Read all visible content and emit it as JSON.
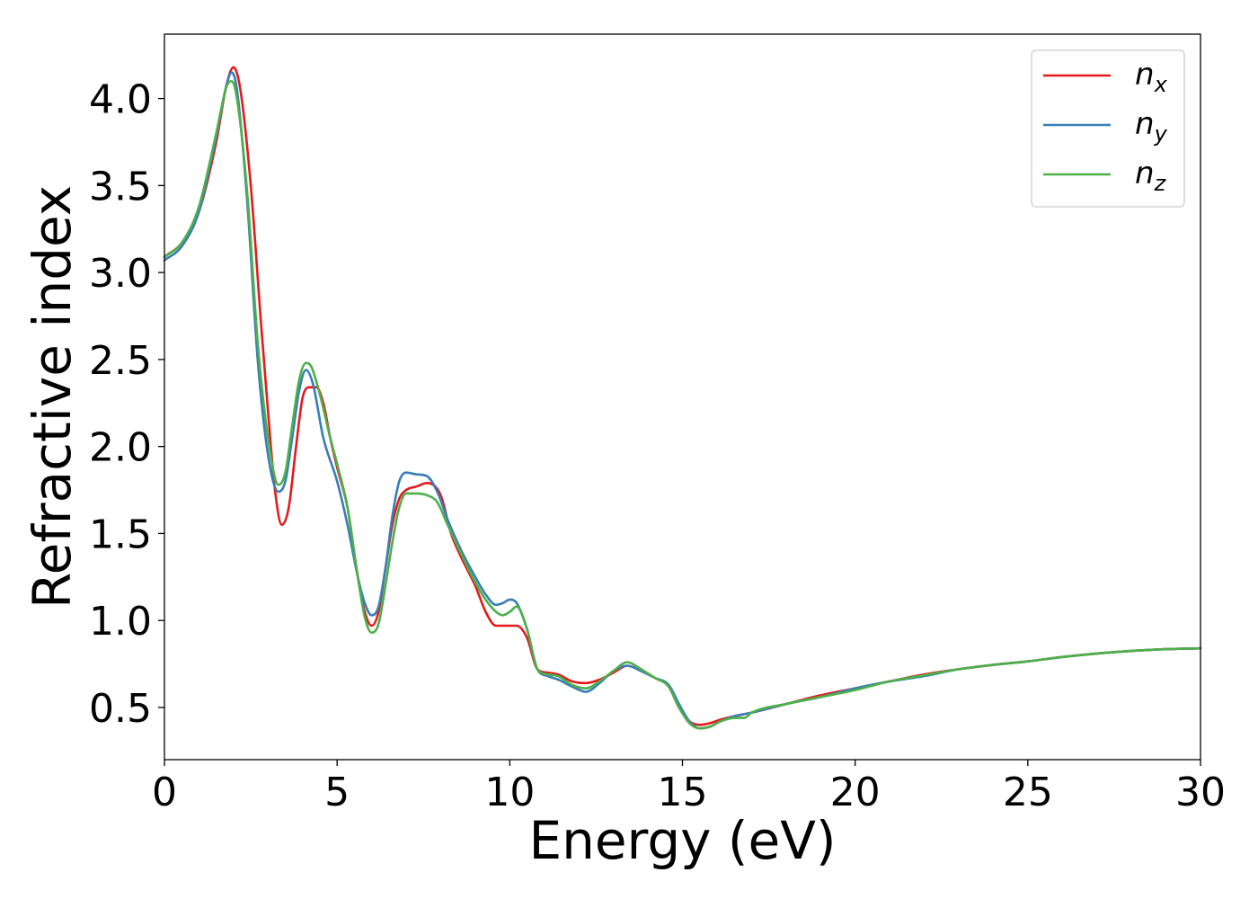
{
  "chart_data": {
    "type": "line",
    "title": "",
    "xlabel": "Energy (eV)",
    "ylabel": "Refractive index",
    "xlim": [
      0,
      30
    ],
    "ylim": [
      0.2,
      4.37
    ],
    "xticks": [
      0,
      5,
      10,
      15,
      20,
      25,
      30
    ],
    "xtick_labels": [
      "0",
      "5",
      "10",
      "15",
      "20",
      "25",
      "30"
    ],
    "yticks": [
      0.5,
      1.0,
      1.5,
      2.0,
      2.5,
      3.0,
      3.5,
      4.0
    ],
    "ytick_labels": [
      "0.5",
      "1.0",
      "1.5",
      "2.0",
      "2.5",
      "3.0",
      "3.5",
      "4.0"
    ],
    "grid": false,
    "legend_position": "top-right",
    "series": [
      {
        "name": "n_x",
        "label_main": "n",
        "label_sub": "x",
        "color": "#e41a1c",
        "x": [
          0,
          0.5,
          1.0,
          1.5,
          1.8,
          2.0,
          2.2,
          2.5,
          2.8,
          3.0,
          3.2,
          3.4,
          3.6,
          3.8,
          4.0,
          4.2,
          4.4,
          4.6,
          4.8,
          5.0,
          5.3,
          5.6,
          5.8,
          6.0,
          6.2,
          6.4,
          6.6,
          6.8,
          7.0,
          7.3,
          7.6,
          8.0,
          8.3,
          8.6,
          9.0,
          9.3,
          9.6,
          9.9,
          10.2,
          10.5,
          10.8,
          11.1,
          11.4,
          11.8,
          12.2,
          12.6,
          13.0,
          13.4,
          13.8,
          14.2,
          14.6,
          14.9,
          15.2,
          15.5,
          15.8,
          16.1,
          16.5,
          17.0,
          18.0,
          19.0,
          20.0,
          21.0,
          22.0,
          23.0,
          24.0,
          25.0,
          26.0,
          27.0,
          28.0,
          29.0,
          30.0
        ],
        "y": [
          3.09,
          3.17,
          3.35,
          3.75,
          4.08,
          4.18,
          4.05,
          3.5,
          2.7,
          2.2,
          1.75,
          1.55,
          1.65,
          1.98,
          2.28,
          2.34,
          2.34,
          2.25,
          2.05,
          1.88,
          1.65,
          1.25,
          1.05,
          0.97,
          1.05,
          1.3,
          1.55,
          1.7,
          1.75,
          1.77,
          1.79,
          1.72,
          1.5,
          1.36,
          1.2,
          1.05,
          0.97,
          0.97,
          0.97,
          0.9,
          0.72,
          0.7,
          0.69,
          0.65,
          0.64,
          0.66,
          0.7,
          0.74,
          0.71,
          0.67,
          0.62,
          0.5,
          0.42,
          0.4,
          0.41,
          0.43,
          0.45,
          0.47,
          0.52,
          0.57,
          0.61,
          0.65,
          0.69,
          0.72,
          0.745,
          0.765,
          0.79,
          0.81,
          0.825,
          0.835,
          0.84
        ]
      },
      {
        "name": "n_y",
        "label_main": "n",
        "label_sub": "y",
        "color": "#377eb8",
        "x": [
          0,
          0.5,
          1.0,
          1.5,
          1.8,
          1.95,
          2.1,
          2.4,
          2.7,
          3.0,
          3.3,
          3.5,
          3.7,
          3.9,
          4.1,
          4.3,
          4.6,
          5.0,
          5.3,
          5.6,
          5.8,
          6.0,
          6.2,
          6.4,
          6.6,
          6.8,
          7.0,
          7.3,
          7.6,
          7.9,
          8.2,
          8.6,
          9.0,
          9.3,
          9.6,
          9.8,
          10.0,
          10.2,
          10.5,
          10.8,
          11.1,
          11.4,
          11.8,
          12.2,
          12.6,
          13.0,
          13.4,
          13.8,
          14.2,
          14.6,
          14.9,
          15.2,
          15.5,
          15.8,
          16.1,
          16.5,
          17.0,
          18.0,
          19.0,
          20.0,
          21.0,
          22.0,
          23.0,
          24.0,
          25.0,
          26.0,
          27.0,
          28.0,
          29.0,
          30.0
        ],
        "y": [
          3.07,
          3.15,
          3.35,
          3.78,
          4.08,
          4.15,
          4.05,
          3.4,
          2.5,
          1.95,
          1.74,
          1.8,
          2.05,
          2.32,
          2.44,
          2.36,
          2.05,
          1.8,
          1.55,
          1.25,
          1.1,
          1.03,
          1.08,
          1.3,
          1.6,
          1.8,
          1.85,
          1.84,
          1.83,
          1.74,
          1.58,
          1.4,
          1.25,
          1.15,
          1.09,
          1.1,
          1.12,
          1.1,
          0.95,
          0.72,
          0.68,
          0.66,
          0.62,
          0.59,
          0.64,
          0.71,
          0.74,
          0.71,
          0.67,
          0.63,
          0.52,
          0.42,
          0.38,
          0.39,
          0.42,
          0.45,
          0.47,
          0.52,
          0.56,
          0.61,
          0.65,
          0.68,
          0.72,
          0.745,
          0.765,
          0.79,
          0.81,
          0.825,
          0.835,
          0.84
        ]
      },
      {
        "name": "n_z",
        "label_main": "n",
        "label_sub": "z",
        "color": "#4daf4a",
        "x": [
          0,
          0.5,
          1.0,
          1.5,
          1.8,
          1.95,
          2.1,
          2.4,
          2.7,
          3.0,
          3.3,
          3.5,
          3.7,
          3.9,
          4.1,
          4.25,
          4.5,
          4.8,
          5.0,
          5.3,
          5.6,
          5.8,
          6.0,
          6.2,
          6.4,
          6.6,
          6.8,
          7.0,
          7.3,
          7.6,
          7.9,
          8.2,
          8.6,
          9.0,
          9.3,
          9.6,
          9.8,
          10.0,
          10.2,
          10.5,
          10.8,
          11.1,
          11.4,
          11.8,
          12.2,
          12.6,
          13.0,
          13.4,
          13.8,
          14.2,
          14.6,
          14.9,
          15.2,
          15.5,
          15.8,
          16.1,
          16.5,
          16.8,
          17.0,
          18.0,
          19.0,
          20.0,
          21.0,
          22.0,
          23.0,
          24.0,
          25.0,
          26.0,
          27.0,
          28.0,
          29.0,
          30.0
        ],
        "y": [
          3.09,
          3.17,
          3.38,
          3.8,
          4.07,
          4.1,
          4.0,
          3.45,
          2.6,
          2.05,
          1.78,
          1.85,
          2.12,
          2.38,
          2.48,
          2.46,
          2.3,
          2.05,
          1.9,
          1.65,
          1.25,
          1.02,
          0.93,
          0.98,
          1.2,
          1.45,
          1.65,
          1.73,
          1.73,
          1.72,
          1.68,
          1.55,
          1.38,
          1.22,
          1.12,
          1.05,
          1.03,
          1.05,
          1.08,
          0.95,
          0.72,
          0.69,
          0.68,
          0.63,
          0.61,
          0.65,
          0.71,
          0.76,
          0.72,
          0.67,
          0.62,
          0.5,
          0.41,
          0.38,
          0.39,
          0.42,
          0.44,
          0.44,
          0.47,
          0.52,
          0.56,
          0.6,
          0.65,
          0.685,
          0.72,
          0.745,
          0.765,
          0.79,
          0.81,
          0.825,
          0.835,
          0.84
        ]
      }
    ]
  }
}
